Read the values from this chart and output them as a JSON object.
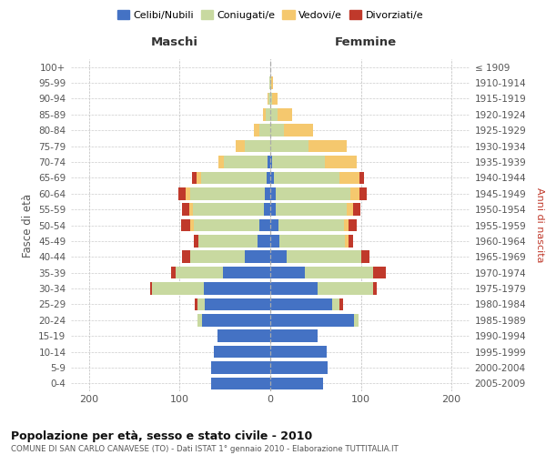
{
  "age_groups": [
    "0-4",
    "5-9",
    "10-14",
    "15-19",
    "20-24",
    "25-29",
    "30-34",
    "35-39",
    "40-44",
    "45-49",
    "50-54",
    "55-59",
    "60-64",
    "65-69",
    "70-74",
    "75-79",
    "80-84",
    "85-89",
    "90-94",
    "95-99",
    "100+"
  ],
  "birth_years": [
    "2005-2009",
    "2000-2004",
    "1995-1999",
    "1990-1994",
    "1985-1989",
    "1980-1984",
    "1975-1979",
    "1970-1974",
    "1965-1969",
    "1960-1964",
    "1955-1959",
    "1950-1954",
    "1945-1949",
    "1940-1944",
    "1935-1939",
    "1930-1934",
    "1925-1929",
    "1920-1924",
    "1915-1919",
    "1910-1914",
    "≤ 1909"
  ],
  "males": {
    "celibi": [
      65,
      65,
      62,
      58,
      75,
      72,
      73,
      52,
      28,
      14,
      12,
      7,
      6,
      4,
      3,
      0,
      0,
      0,
      0,
      0,
      0
    ],
    "coniugati": [
      0,
      0,
      0,
      0,
      5,
      8,
      58,
      52,
      60,
      65,
      72,
      78,
      82,
      72,
      48,
      28,
      12,
      5,
      2,
      1,
      0
    ],
    "vedovi": [
      0,
      0,
      0,
      0,
      0,
      0,
      0,
      0,
      0,
      0,
      4,
      4,
      5,
      5,
      6,
      10,
      6,
      3,
      1,
      0,
      0
    ],
    "divorziati": [
      0,
      0,
      0,
      0,
      0,
      3,
      2,
      5,
      9,
      5,
      10,
      8,
      8,
      5,
      0,
      0,
      0,
      0,
      0,
      0,
      0
    ]
  },
  "females": {
    "nubili": [
      58,
      63,
      62,
      52,
      92,
      68,
      52,
      38,
      18,
      10,
      9,
      6,
      6,
      4,
      2,
      0,
      0,
      0,
      0,
      0,
      0
    ],
    "coniugate": [
      0,
      0,
      0,
      0,
      5,
      8,
      62,
      76,
      82,
      72,
      72,
      78,
      82,
      72,
      58,
      42,
      15,
      8,
      2,
      1,
      0
    ],
    "vedove": [
      0,
      0,
      0,
      0,
      0,
      0,
      0,
      0,
      0,
      4,
      5,
      7,
      10,
      22,
      35,
      42,
      32,
      16,
      6,
      2,
      0
    ],
    "divorziate": [
      0,
      0,
      0,
      0,
      0,
      4,
      4,
      14,
      9,
      5,
      9,
      8,
      8,
      5,
      0,
      0,
      0,
      0,
      0,
      0,
      0
    ]
  },
  "colors": {
    "celibi": "#4472c4",
    "coniugati": "#c8d9a0",
    "vedovi": "#f5c86e",
    "divorziati": "#c0392b"
  },
  "xlim": 220,
  "title": "Popolazione per età, sesso e stato civile - 2010",
  "subtitle": "COMUNE DI SAN CARLO CANAVESE (TO) - Dati ISTAT 1° gennaio 2010 - Elaborazione TUTTITALIA.IT",
  "ylabel_left": "Fasce di età",
  "ylabel_right": "Anni di nascita",
  "xlabel_left": "Maschi",
  "xlabel_right": "Femmine",
  "legend_labels": [
    "Celibi/Nubili",
    "Coniugati/e",
    "Vedovi/e",
    "Divorziati/e"
  ]
}
